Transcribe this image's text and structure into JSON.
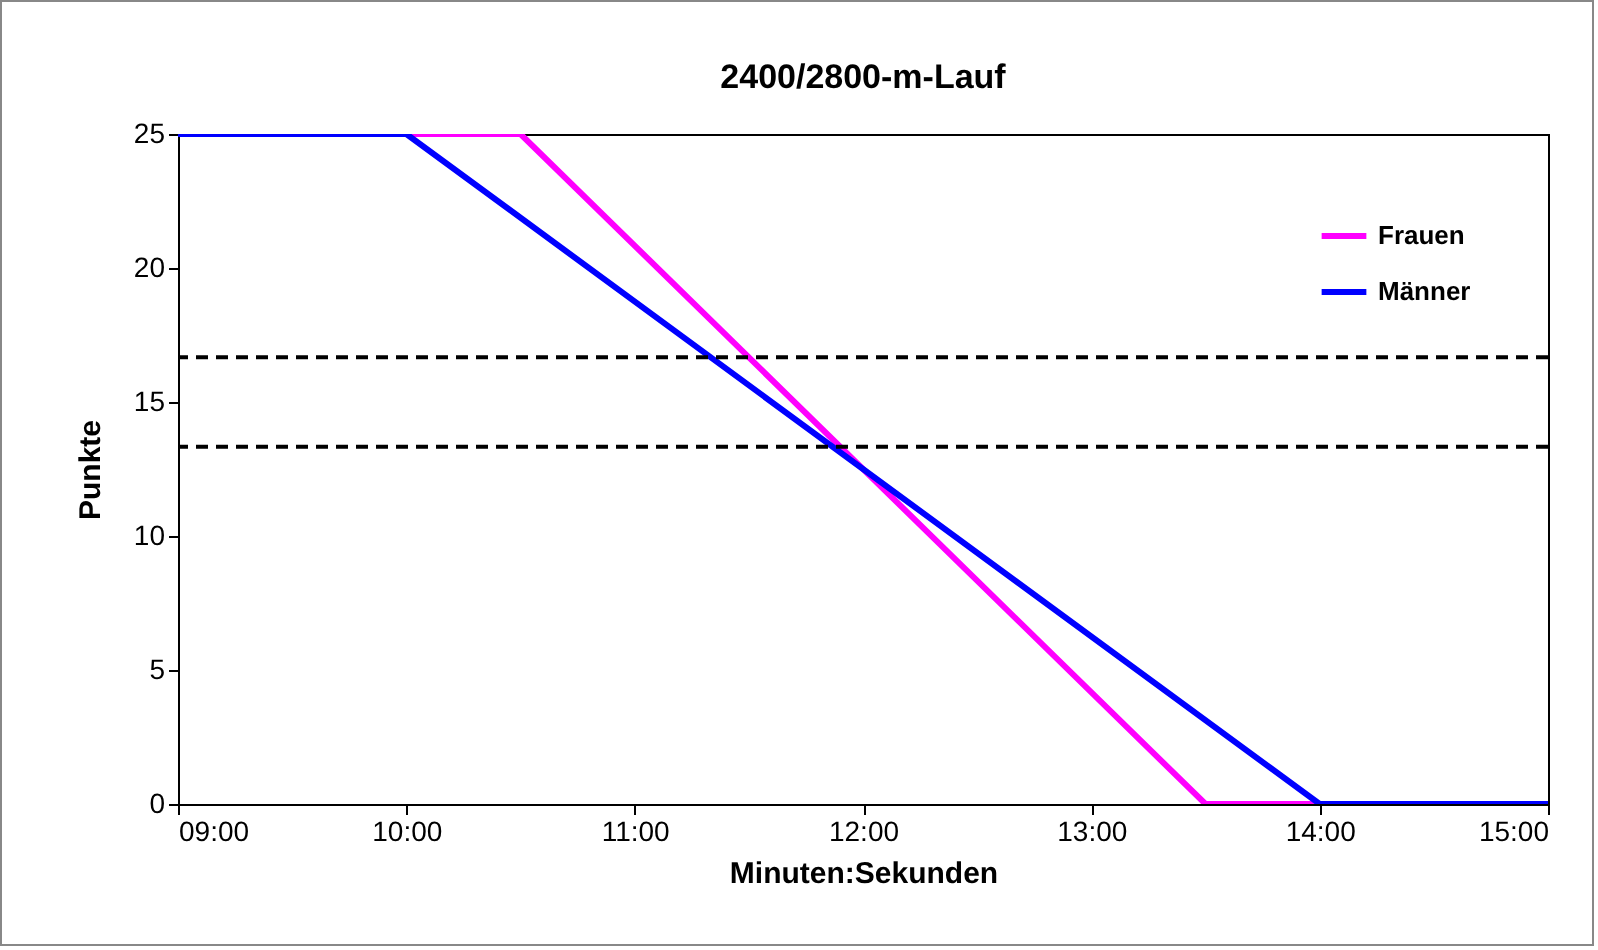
{
  "chart_data": {
    "type": "line",
    "title": "2400/2800-m-Lauf",
    "xlabel": "Minuten:Sekunden",
    "ylabel": "Punkte",
    "xlim": [
      9,
      15
    ],
    "xticks": [
      {
        "value": 9,
        "label": "09:00"
      },
      {
        "value": 10,
        "label": "10:00"
      },
      {
        "value": 11,
        "label": "11:00"
      },
      {
        "value": 12,
        "label": "12:00"
      },
      {
        "value": 13,
        "label": "13:00"
      },
      {
        "value": 14,
        "label": "14:00"
      },
      {
        "value": 15,
        "label": "15:00"
      }
    ],
    "ylim": [
      0,
      25
    ],
    "yticks": [
      0,
      5,
      10,
      15,
      20,
      25
    ],
    "series": [
      {
        "name": "Frauen",
        "color": "#ff00ff",
        "x": [
          9,
          10.5,
          13.5,
          15
        ],
        "values": [
          25,
          25,
          0,
          0
        ]
      },
      {
        "name": "Männer",
        "color": "#0000ff",
        "x": [
          9,
          10,
          14,
          15
        ],
        "values": [
          25,
          25,
          0,
          0
        ]
      }
    ],
    "ref_lines": [
      {
        "axis": "y",
        "value": 16.67,
        "color": "#000000",
        "line_style": "dashed"
      },
      {
        "axis": "y",
        "value": 13.33,
        "color": "#000000",
        "line_style": "dashed"
      }
    ],
    "legend": "top right",
    "grid": false,
    "marker": "none",
    "line_style": "solid"
  }
}
